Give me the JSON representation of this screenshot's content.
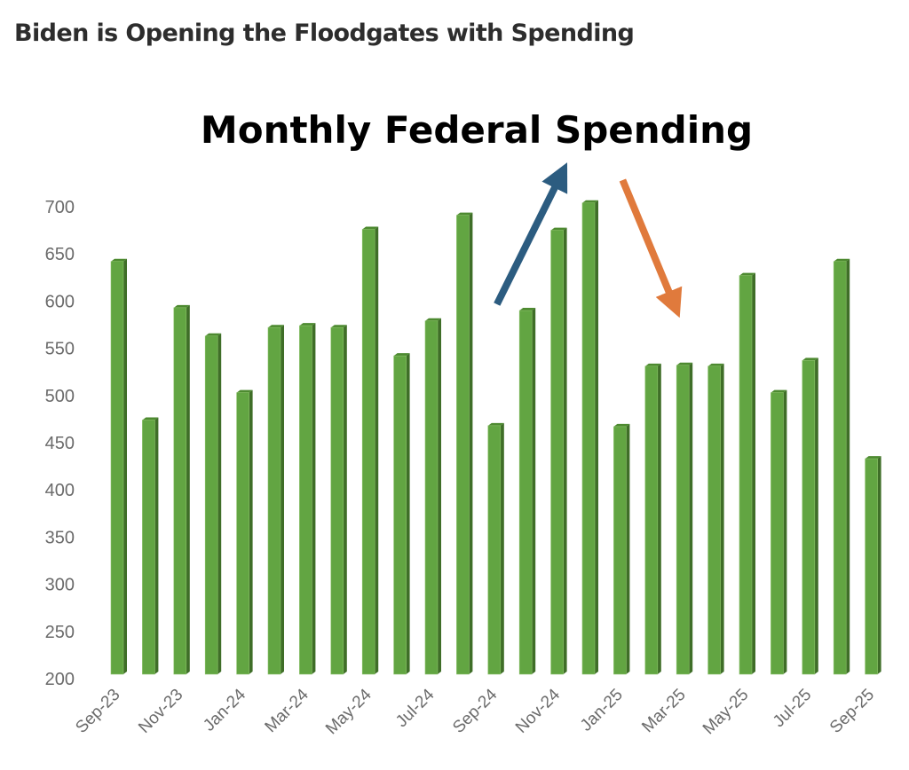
{
  "page": {
    "headline": "Biden is Opening the Floodgates with Spending"
  },
  "chart_data": {
    "type": "bar",
    "title": "Monthly Federal Spending",
    "xlabel": "",
    "ylabel": "",
    "ylim": [
      200,
      700
    ],
    "yticks": [
      200,
      250,
      300,
      350,
      400,
      450,
      500,
      550,
      600,
      650,
      700
    ],
    "grid": false,
    "legend": "none",
    "categories": [
      "Sep-23",
      "Oct-23",
      "Nov-23",
      "Dec-23",
      "Jan-24",
      "Feb-24",
      "Mar-24",
      "Apr-24",
      "May-24",
      "Jun-24",
      "Jul-24",
      "Aug-24",
      "Sep-24",
      "Oct-24",
      "Nov-24",
      "Dec-24",
      "Jan-25",
      "Feb-25",
      "Mar-25",
      "Apr-25",
      "May-25",
      "Jun-25",
      "Jul-25",
      "Aug-25",
      "Sep-25"
    ],
    "xtick_labels": [
      "Sep-23",
      "Nov-23",
      "Jan-24",
      "Mar-24",
      "May-24",
      "Jul-24",
      "Sep-24",
      "Nov-24",
      "Jan-25",
      "Mar-25",
      "May-25",
      "Jul-25",
      "Sep-25"
    ],
    "series": [
      {
        "name": "Monthly Federal Spending",
        "color": "#62a542",
        "values": [
          642,
          474,
          593,
          563,
          503,
          572,
          574,
          572,
          676,
          542,
          579,
          691,
          468,
          590,
          675,
          704,
          467,
          531,
          532,
          531,
          627,
          503,
          537,
          642,
          433
        ]
      }
    ],
    "annotations": [
      {
        "type": "arrow",
        "direction": "up",
        "color": "#2c5c80",
        "from_category": "Sep-24",
        "to_category": "Nov-24"
      },
      {
        "type": "arrow",
        "direction": "down",
        "color": "#e07a3c",
        "from_category": "Jan-25",
        "to_category": "Mar-25"
      }
    ]
  }
}
